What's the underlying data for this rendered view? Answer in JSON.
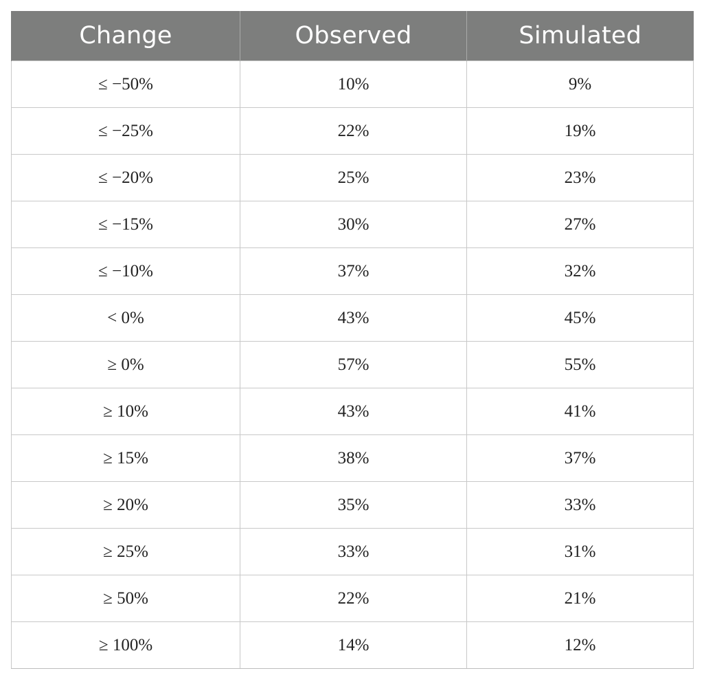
{
  "table": {
    "headers": [
      "Change",
      "Observed",
      "Simulated"
    ],
    "rows": [
      [
        "≤ −50%",
        "10%",
        "9%"
      ],
      [
        "≤ −25%",
        "22%",
        "19%"
      ],
      [
        "≤ −20%",
        "25%",
        "23%"
      ],
      [
        "≤ −15%",
        "30%",
        "27%"
      ],
      [
        "≤ −10%",
        "37%",
        "32%"
      ],
      [
        "< 0%",
        "43%",
        "45%"
      ],
      [
        "≥ 0%",
        "57%",
        "55%"
      ],
      [
        "≥ 10%",
        "43%",
        "41%"
      ],
      [
        "≥ 15%",
        "38%",
        "37%"
      ],
      [
        "≥ 20%",
        "35%",
        "33%"
      ],
      [
        "≥ 25%",
        "33%",
        "31%"
      ],
      [
        "≥ 50%",
        "22%",
        "21%"
      ],
      [
        "≥ 100%",
        "14%",
        "12%"
      ]
    ]
  },
  "colors": {
    "header_background": "#7d7e7d",
    "header_text": "#ffffff",
    "grid_line": "#c8c8c8",
    "body_text": "#222222"
  }
}
